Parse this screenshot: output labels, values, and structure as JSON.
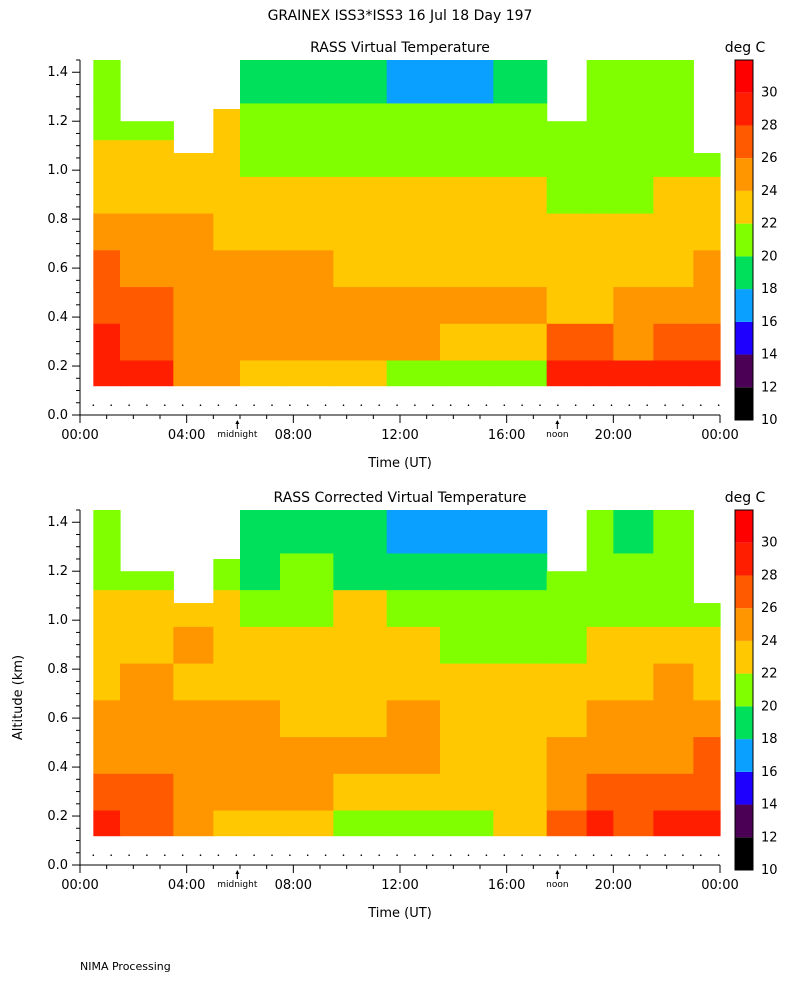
{
  "header": {
    "title": "GRAINEX ISS3*ISS3  16 Jul 18 Day 197"
  },
  "footer": {
    "text": "NIMA Processing"
  },
  "colorbar": {
    "unit": "deg C",
    "levels": [
      10,
      12,
      14,
      16,
      18,
      20,
      22,
      24,
      26,
      28,
      30
    ],
    "colors": [
      "#000000",
      "#4b0055",
      "#1e00ff",
      "#0aa0ff",
      "#00e05a",
      "#80ff00",
      "#ffc800",
      "#ff9600",
      "#ff5a00",
      "#ff1e00",
      "#ff0000"
    ]
  },
  "chart_data": [
    {
      "type": "heatmap",
      "title": "RASS Virtual Temperature",
      "xlabel": "Time (UT)",
      "ylabel": "",
      "x_tick_labels": [
        "00:00",
        "04:00",
        "08:00",
        "12:00",
        "16:00",
        "20:00",
        "00:00"
      ],
      "x_markers": [
        {
          "label": "midnight",
          "x": 5.9
        },
        {
          "label": "noon",
          "x": 17.9
        }
      ],
      "y_tick_labels": [
        "0.0",
        "0.2",
        "0.4",
        "0.6",
        "0.8",
        "1.0",
        "1.2",
        "1.4"
      ],
      "xlim": [
        0,
        24
      ],
      "ylim": [
        0,
        1.45
      ],
      "data_yrange": [
        0.12,
        1.45
      ],
      "x_hours": [
        0.5,
        2.5,
        4.5,
        5.5,
        6.5,
        8.5,
        10.5,
        12.5,
        14.5,
        16.5,
        18.5,
        19.5,
        20.5,
        22.5,
        23.5
      ],
      "y_km": [
        0.15,
        0.3,
        0.45,
        0.6,
        0.75,
        0.9,
        1.05,
        1.2,
        1.35
      ],
      "top_km": [
        1.45,
        1.2,
        1.07,
        1.25,
        1.45,
        1.45,
        1.45,
        1.45,
        1.45,
        1.45,
        1.2,
        1.45,
        1.45,
        1.45,
        1.07
      ],
      "values_degC": [
        [
          29,
          29,
          25,
          25,
          23,
          23,
          23,
          21,
          21,
          21,
          29,
          29,
          29,
          29,
          29
        ],
        [
          29,
          27,
          25,
          25,
          25,
          25,
          25,
          25,
          23,
          23,
          27,
          27,
          25,
          27,
          27
        ],
        [
          27,
          27,
          25,
          25,
          25,
          25,
          25,
          25,
          25,
          25,
          23,
          23,
          25,
          25,
          25
        ],
        [
          27,
          25,
          25,
          25,
          25,
          25,
          23,
          23,
          23,
          23,
          23,
          23,
          23,
          23,
          25
        ],
        [
          25,
          25,
          25,
          23,
          23,
          23,
          23,
          23,
          23,
          23,
          23,
          23,
          23,
          23,
          23
        ],
        [
          23,
          23,
          23,
          23,
          23,
          23,
          23,
          23,
          23,
          23,
          21,
          21,
          21,
          23,
          23
        ],
        [
          23,
          23,
          23,
          23,
          21,
          21,
          21,
          21,
          21,
          21,
          21,
          21,
          21,
          21,
          21
        ],
        [
          21,
          21,
          21,
          23,
          21,
          21,
          21,
          21,
          21,
          21,
          21,
          21,
          21,
          21,
          21
        ],
        [
          21,
          21,
          21,
          21,
          19,
          19,
          19,
          17,
          17,
          19,
          21,
          21,
          21,
          21,
          21
        ]
      ]
    },
    {
      "type": "heatmap",
      "title": "RASS Corrected Virtual Temperature",
      "xlabel": "Time (UT)",
      "ylabel": "Altitude (km)",
      "x_tick_labels": [
        "00:00",
        "04:00",
        "08:00",
        "12:00",
        "16:00",
        "20:00",
        "00:00"
      ],
      "x_markers": [
        {
          "label": "midnight",
          "x": 5.9
        },
        {
          "label": "noon",
          "x": 17.9
        }
      ],
      "y_tick_labels": [
        "0.0",
        "0.2",
        "0.4",
        "0.6",
        "0.8",
        "1.0",
        "1.2",
        "1.4"
      ],
      "xlim": [
        0,
        24
      ],
      "ylim": [
        0,
        1.45
      ],
      "data_yrange": [
        0.12,
        1.45
      ],
      "x_hours": [
        0.5,
        2.5,
        4.5,
        5.5,
        6.5,
        8.5,
        10.5,
        12.5,
        14.5,
        16.5,
        18.5,
        19.5,
        20.5,
        22.5,
        23.5
      ],
      "y_km": [
        0.15,
        0.3,
        0.45,
        0.6,
        0.75,
        0.9,
        1.05,
        1.2,
        1.35
      ],
      "top_km": [
        1.45,
        1.2,
        1.07,
        1.25,
        1.45,
        1.45,
        1.45,
        1.45,
        1.45,
        1.45,
        1.2,
        1.45,
        1.45,
        1.45,
        1.07
      ],
      "values_degC": [
        [
          29,
          27,
          25,
          23,
          23,
          23,
          21,
          21,
          21,
          23,
          27,
          29,
          27,
          29,
          29
        ],
        [
          27,
          27,
          25,
          25,
          25,
          25,
          23,
          23,
          23,
          23,
          25,
          27,
          27,
          27,
          27
        ],
        [
          25,
          25,
          25,
          25,
          25,
          25,
          25,
          25,
          23,
          23,
          25,
          25,
          25,
          25,
          27
        ],
        [
          25,
          25,
          25,
          25,
          25,
          23,
          23,
          25,
          23,
          23,
          23,
          25,
          25,
          25,
          25
        ],
        [
          23,
          25,
          23,
          23,
          23,
          23,
          23,
          23,
          23,
          23,
          23,
          23,
          23,
          25,
          23
        ],
        [
          23,
          23,
          25,
          23,
          23,
          23,
          23,
          23,
          21,
          21,
          21,
          23,
          23,
          23,
          23
        ],
        [
          23,
          23,
          23,
          23,
          21,
          21,
          23,
          21,
          21,
          21,
          21,
          21,
          21,
          21,
          21
        ],
        [
          21,
          21,
          21,
          21,
          19,
          21,
          19,
          19,
          19,
          19,
          21,
          21,
          21,
          21,
          21
        ],
        [
          21,
          21,
          21,
          21,
          19,
          19,
          19,
          17,
          17,
          17,
          19,
          21,
          19,
          21,
          21
        ]
      ]
    }
  ]
}
